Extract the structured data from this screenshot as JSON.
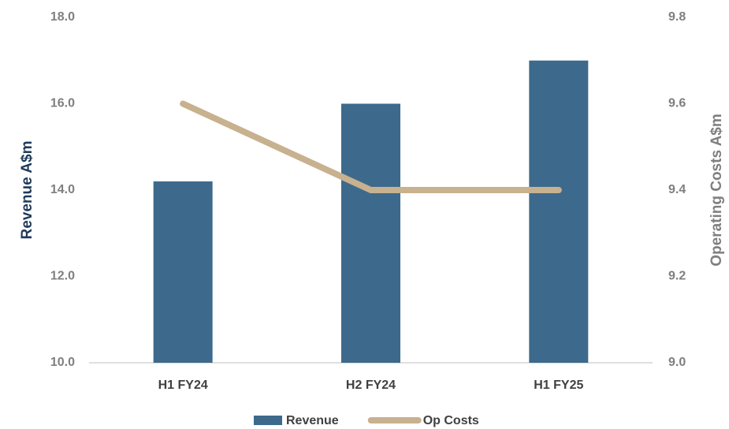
{
  "chart_data": {
    "type": "bar-line",
    "categories": [
      "H1 FY24",
      "H2 FY24",
      "H1 FY25"
    ],
    "series": [
      {
        "name": "Revenue",
        "type": "bar",
        "color": "#3d6a8c",
        "values": [
          14.2,
          16.0,
          17.0
        ]
      },
      {
        "name": "Op Costs",
        "type": "line",
        "axis": "y2",
        "color": "#c8b18f",
        "values": [
          9.6,
          9.4,
          9.4
        ]
      }
    ],
    "ylabel": "Revenue A$m",
    "y2label": "Operating Costs A$m",
    "ylim": [
      10,
      18
    ],
    "yticks": [
      {
        "value": 10,
        "label": "10.0"
      },
      {
        "value": 12,
        "label": "12.0"
      },
      {
        "value": 14,
        "label": "14.0"
      },
      {
        "value": 16,
        "label": "16.0"
      },
      {
        "value": 18,
        "label": "18.0"
      }
    ],
    "y2lim": [
      9.0,
      9.8
    ],
    "y2ticks": [
      {
        "value": 9,
        "label": "9.0"
      },
      {
        "value": 9.2,
        "label": "9.2"
      },
      {
        "value": 9.4,
        "label": "9.4"
      },
      {
        "value": 9.6,
        "label": "9.6"
      },
      {
        "value": 9.8,
        "label": "9.8"
      }
    ],
    "legend": "bottom"
  }
}
